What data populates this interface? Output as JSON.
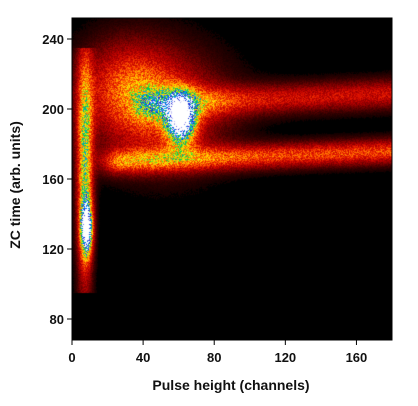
{
  "chart_data": {
    "type": "heatmap",
    "title": "",
    "xlabel": "Pulse height (channels)",
    "ylabel": "ZC time (arb. units)",
    "xlim": [
      0,
      180
    ],
    "ylim": [
      68,
      252
    ],
    "x_ticks": [
      0,
      40,
      80,
      120,
      160
    ],
    "y_ticks": [
      80,
      120,
      160,
      200,
      240
    ],
    "grid": false,
    "legend": "none",
    "colormap": [
      "#000000",
      "#3a0000",
      "#7a0000",
      "#b30000",
      "#e01500",
      "#ff5a00",
      "#ffa500",
      "#ffee00",
      "#00cc44",
      "#00a0ff",
      "#1010d0",
      "#ffffff"
    ],
    "features": [
      {
        "name": "peak",
        "x": 61,
        "y": 194,
        "sx": 5.5,
        "sy": 9,
        "intensity": 1.0
      },
      {
        "name": "peak",
        "x": 8,
        "y": 132,
        "sx": 2.2,
        "sy": 10,
        "intensity": 1.0
      },
      {
        "name": "band",
        "x_range": [
          20,
          180
        ],
        "y_start": 170,
        "y_end": 176,
        "width": 5,
        "intensity": 0.42
      },
      {
        "name": "band",
        "x_range": [
          40,
          180
        ],
        "y_start": 203,
        "y_end": 209,
        "width": 6,
        "intensity": 0.32
      },
      {
        "name": "halo",
        "x": 50,
        "y": 200,
        "sx": 25,
        "sy": 22,
        "intensity": 0.38
      }
    ]
  }
}
